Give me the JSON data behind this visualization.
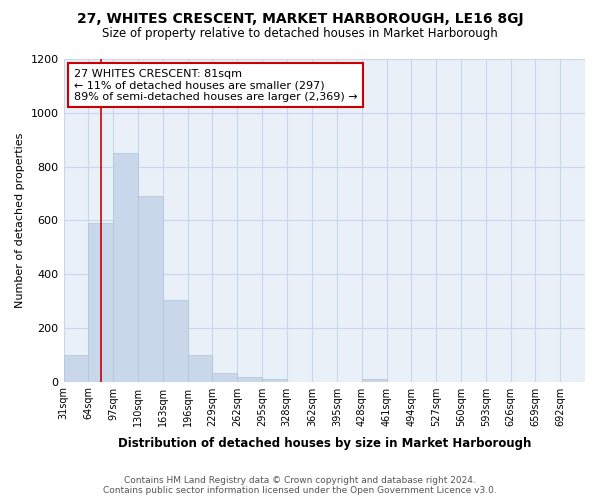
{
  "title": "27, WHITES CRESCENT, MARKET HARBOROUGH, LE16 8GJ",
  "subtitle": "Size of property relative to detached houses in Market Harborough",
  "xlabel": "Distribution of detached houses by size in Market Harborough",
  "ylabel": "Number of detached properties",
  "footer_line1": "Contains HM Land Registry data © Crown copyright and database right 2024.",
  "footer_line2": "Contains public sector information licensed under the Open Government Licence v3.0.",
  "annotation_line1": "27 WHITES CRESCENT: 81sqm",
  "annotation_line2": "← 11% of detached houses are smaller (297)",
  "annotation_line3": "89% of semi-detached houses are larger (2,369) →",
  "property_line_x": 81,
  "categories": [
    "31sqm",
    "64sqm",
    "97sqm",
    "130sqm",
    "163sqm",
    "196sqm",
    "229sqm",
    "262sqm",
    "295sqm",
    "328sqm",
    "362sqm",
    "395sqm",
    "428sqm",
    "461sqm",
    "494sqm",
    "527sqm",
    "560sqm",
    "593sqm",
    "626sqm",
    "659sqm",
    "692sqm"
  ],
  "bin_edges": [
    31,
    64,
    97,
    130,
    163,
    196,
    229,
    262,
    295,
    328,
    362,
    395,
    428,
    461,
    494,
    527,
    560,
    593,
    626,
    659,
    692,
    725
  ],
  "values": [
    100,
    590,
    850,
    690,
    305,
    100,
    32,
    18,
    10,
    0,
    0,
    0,
    10,
    0,
    0,
    0,
    0,
    0,
    0,
    0,
    0
  ],
  "bar_color": "#c8d8ea",
  "bar_edge_color": "#b0c4d8",
  "property_line_color": "#cc0000",
  "annotation_box_color": "#cc0000",
  "background_color": "#ffffff",
  "plot_bg_color": "#eaf0f8",
  "grid_color": "#c8d8ea",
  "ylim": [
    0,
    1200
  ],
  "yticks": [
    0,
    200,
    400,
    600,
    800,
    1000,
    1200
  ]
}
